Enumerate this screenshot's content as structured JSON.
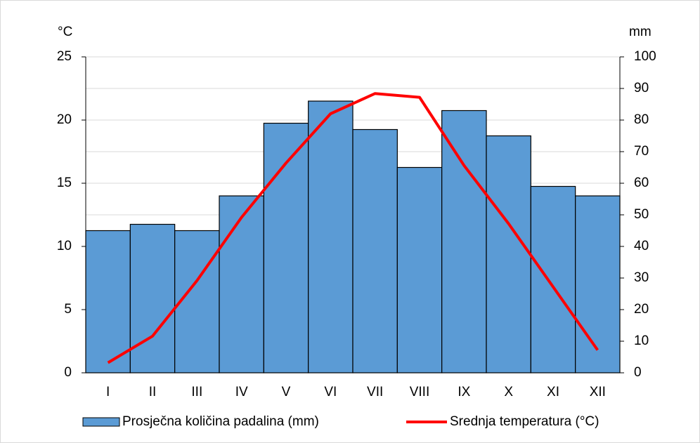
{
  "chart_data": {
    "type": "bar",
    "y_label": "°C",
    "y2_label": "mm",
    "categories": [
      "I",
      "II",
      "III",
      "IV",
      "V",
      "VI",
      "VII",
      "VIII",
      "IX",
      "X",
      "XI",
      "XII"
    ],
    "series": [
      {
        "name": "Prosječna količina padalina (mm)",
        "type": "bar",
        "axis": "y2",
        "color": "#5b9bd5",
        "values": [
          45,
          47,
          45,
          56,
          79,
          86,
          77,
          65,
          83,
          75,
          59,
          56
        ]
      },
      {
        "name": "Srednja temperatura (°C)",
        "type": "line",
        "color": "#ff0000",
        "values": [
          0.8,
          2.9,
          7.3,
          12.3,
          16.6,
          20.5,
          22.1,
          21.8,
          16.4,
          11.8,
          6.8,
          1.8
        ]
      }
    ],
    "ylim": [
      0,
      25
    ],
    "yticks": [
      0,
      5,
      10,
      15,
      20,
      25
    ],
    "y2lim": [
      0,
      100
    ],
    "y2ticks": [
      0,
      10,
      20,
      30,
      40,
      50,
      60,
      70,
      80,
      90,
      100
    ],
    "grid": true,
    "legend": "bottom"
  }
}
